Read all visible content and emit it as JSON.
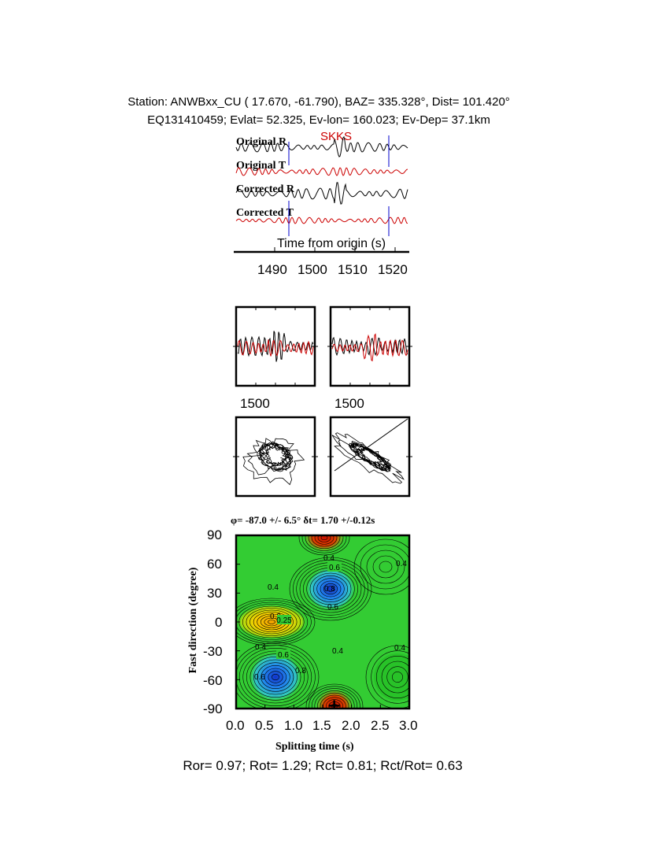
{
  "header": {
    "line1": "Station: ANWBxx_CU (  17.670,  -61.790), BAZ=  335.328°, Dist=  101.420°",
    "line2": "EQ131410459; Evlat=  52.325, Ev-lon= 160.023; Ev-Dep= 37.1km"
  },
  "traces": {
    "labels": [
      "Original R",
      "Original T",
      "Corrected R",
      "Corrected T"
    ],
    "phase_label": "SKKS",
    "xlabel": "Time from origin (s)",
    "ticks": [
      "1490",
      "1500",
      "1510",
      "1520"
    ],
    "colors": {
      "radial": "#000000",
      "transverse": "#cc0000",
      "marker": "#0000cc"
    }
  },
  "wave_panels": {
    "ticks": [
      "1500",
      "1500"
    ]
  },
  "grid_search": {
    "title_phi": "φ= -87.0 +/- 6.5°",
    "title_dt": "δt= 1.70 +/-0.12s",
    "xlabel": "Splitting time (s)",
    "ylabel": "Fast direction (degree)",
    "xticks": [
      "0.0",
      "0.5",
      "1.0",
      "1.5",
      "2.0",
      "2.5",
      "3.0"
    ],
    "yticks": [
      "90",
      "60",
      "30",
      "0",
      "-30",
      "-60",
      "-90"
    ],
    "contour_labels": [
      "0.4",
      "0.6",
      "0.8",
      "0.6",
      "0.4",
      "0.2",
      "0.25",
      "0.4",
      "0.6",
      "0.6",
      "0.8",
      "0.4",
      "0.4",
      "0.4"
    ]
  },
  "chart_data": [
    {
      "type": "line",
      "title": "",
      "xlabel": "Time from origin (s)",
      "ylabel": "",
      "xlim": [
        1481,
        1523
      ],
      "series": [
        {
          "name": "Original R",
          "values": []
        },
        {
          "name": "Original T",
          "values": []
        },
        {
          "name": "Corrected R",
          "values": []
        },
        {
          "name": "Corrected T",
          "values": []
        }
      ],
      "annotations": [
        "SKKS"
      ],
      "markers_x": [
        1493.5,
        1517.5
      ]
    },
    {
      "type": "heatmap",
      "title": "φ= -87.0 +/- 6.5° δt= 1.70 +/-0.12s",
      "xlabel": "Splitting time (s)",
      "ylabel": "Fast direction (degree)",
      "xlim": [
        0.0,
        3.0
      ],
      "ylim": [
        -90,
        90
      ],
      "best_fit": {
        "dt": 1.7,
        "phi": -87.0
      }
    }
  ],
  "footer": {
    "text": "Ror= 0.97; Rot= 1.29; Rct= 0.81; Rct/Rot= 0.63"
  }
}
